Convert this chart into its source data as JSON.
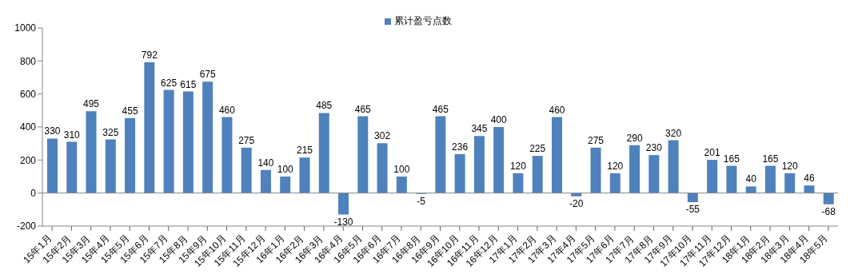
{
  "chart_data": {
    "type": "bar",
    "categories": [
      "15年1月",
      "15年2月",
      "15年3月",
      "15年4月",
      "15年5月",
      "15年6月",
      "15年7月",
      "15年8月",
      "15年9月",
      "15年10月",
      "15年11月",
      "15年12月",
      "16年1月",
      "16年2月",
      "16年3月",
      "16年4月",
      "16年5月",
      "16年6月",
      "16年7月",
      "16年8月",
      "16年9月",
      "16年10月",
      "16年11月",
      "16年12月",
      "17年1月",
      "17年2月",
      "17年3月",
      "17年4月",
      "17年5月",
      "17年6月",
      "17年7月",
      "17年8月",
      "17年9月",
      "17年10月",
      "17年11月",
      "17年12月",
      "18年1月",
      "18年2月",
      "18年3月",
      "18年4月",
      "18年5月"
    ],
    "series": [
      {
        "name": "累计盈亏点数",
        "color": "#4f81bd",
        "values": [
          330,
          310,
          495,
          325,
          455,
          792,
          625,
          615,
          675,
          460,
          275,
          140,
          100,
          215,
          485,
          -130,
          465,
          302,
          100,
          -5,
          465,
          236,
          345,
          400,
          120,
          225,
          460,
          -20,
          275,
          120,
          290,
          230,
          320,
          -55,
          201,
          165,
          40,
          165,
          120,
          46,
          -68
        ]
      }
    ],
    "ylim": [
      -200,
      1000
    ],
    "yticks": [
      -200,
      0,
      200,
      400,
      600,
      800,
      1000
    ],
    "legend": "top",
    "data_labels": true
  }
}
